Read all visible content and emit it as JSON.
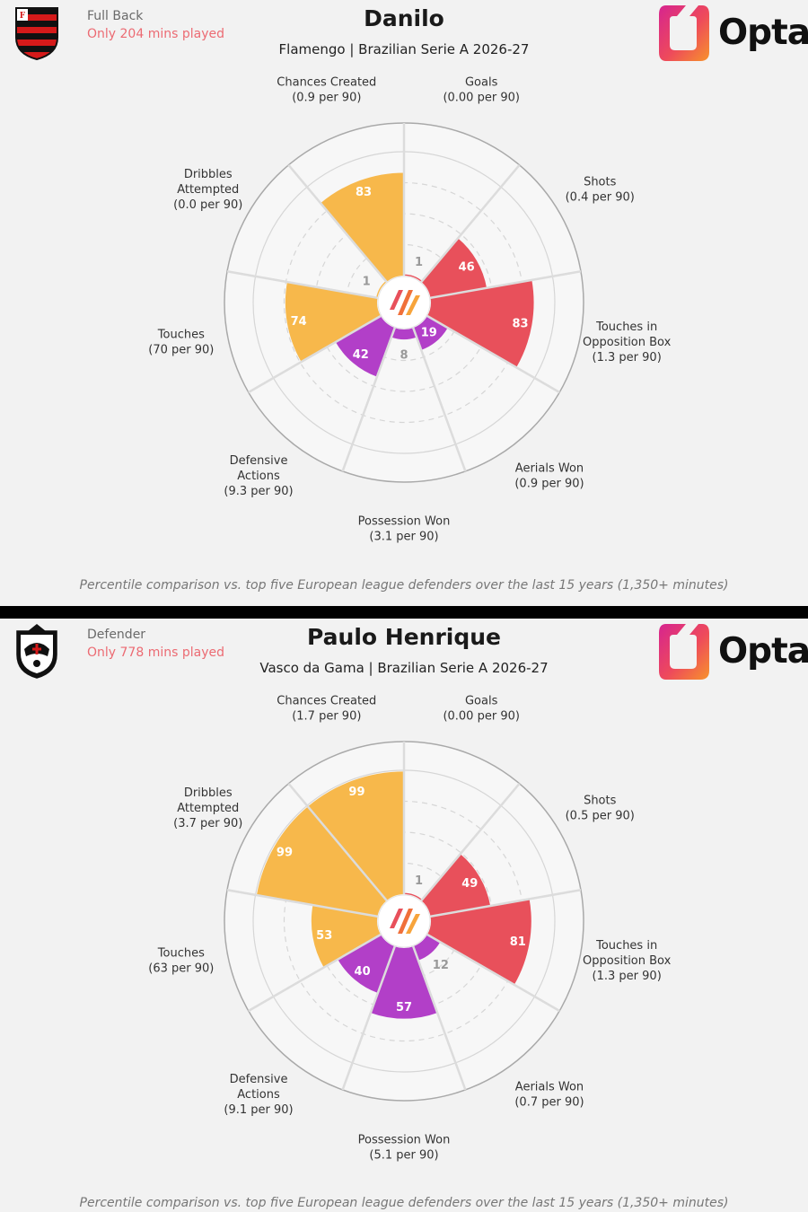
{
  "note": "Percentile comparison vs. top five European league defenders over the last 15 years (1,350+ minutes)",
  "colors": {
    "attacking": "#e8505b",
    "possession": "#f7b84b",
    "defending": "#b23fc8",
    "grid": "#d6d6d6",
    "bg": "#f2f2f2"
  },
  "brand": "Opta",
  "players": [
    {
      "position": "Full Back",
      "mins_note": "Only 204 mins played",
      "name": "Danilo",
      "team_line": "Flamengo | Brazilian Serie A 2026-27",
      "crest_icon": "flamengo-crest-icon",
      "chart_data": {
        "type": "polar-bar",
        "metrics": [
          {
            "label": [
              "Goals",
              "(0.00 per 90)"
            ],
            "percentile": 1,
            "group": "attacking"
          },
          {
            "label": [
              "Shots",
              "(0.4 per 90)"
            ],
            "percentile": 46,
            "group": "attacking"
          },
          {
            "label": [
              "Touches in",
              "Opposition Box",
              "(1.3 per 90)"
            ],
            "percentile": 83,
            "group": "attacking"
          },
          {
            "label": [
              "Aerials Won",
              "(0.9 per 90)"
            ],
            "percentile": 19,
            "group": "defending"
          },
          {
            "label": [
              "Possession Won",
              "(3.1 per 90)"
            ],
            "percentile": 8,
            "group": "defending"
          },
          {
            "label": [
              "Defensive",
              "Actions",
              "(9.3 per 90)"
            ],
            "percentile": 42,
            "group": "defending"
          },
          {
            "label": [
              "Touches",
              "(70 per 90)"
            ],
            "percentile": 74,
            "group": "possession"
          },
          {
            "label": [
              "Dribbles",
              "Attempted",
              "(0.0 per 90)"
            ],
            "percentile": 1,
            "group": "possession"
          },
          {
            "label": [
              "Chances Created",
              "(0.9 per 90)"
            ],
            "percentile": 83,
            "group": "possession"
          }
        ]
      }
    },
    {
      "position": "Defender",
      "mins_note": "Only 778 mins played",
      "name": "Paulo Henrique",
      "team_line": "Vasco da Gama | Brazilian Serie A 2026-27",
      "crest_icon": "vasco-crest-icon",
      "chart_data": {
        "type": "polar-bar",
        "metrics": [
          {
            "label": [
              "Goals",
              "(0.00 per 90)"
            ],
            "percentile": 1,
            "group": "attacking"
          },
          {
            "label": [
              "Shots",
              "(0.5 per 90)"
            ],
            "percentile": 49,
            "group": "attacking"
          },
          {
            "label": [
              "Touches in",
              "Opposition Box",
              "(1.3 per 90)"
            ],
            "percentile": 81,
            "group": "attacking"
          },
          {
            "label": [
              "Aerials Won",
              "(0.7 per 90)"
            ],
            "percentile": 12,
            "group": "defending"
          },
          {
            "label": [
              "Possession Won",
              "(5.1 per 90)"
            ],
            "percentile": 57,
            "group": "defending"
          },
          {
            "label": [
              "Defensive",
              "Actions",
              "(9.1 per 90)"
            ],
            "percentile": 40,
            "group": "defending"
          },
          {
            "label": [
              "Touches",
              "(63 per 90)"
            ],
            "percentile": 53,
            "group": "possession"
          },
          {
            "label": [
              "Dribbles",
              "Attempted",
              "(3.7 per 90)"
            ],
            "percentile": 99,
            "group": "possession"
          },
          {
            "label": [
              "Chances Created",
              "(1.7 per 90)"
            ],
            "percentile": 99,
            "group": "possession"
          }
        ]
      }
    }
  ]
}
